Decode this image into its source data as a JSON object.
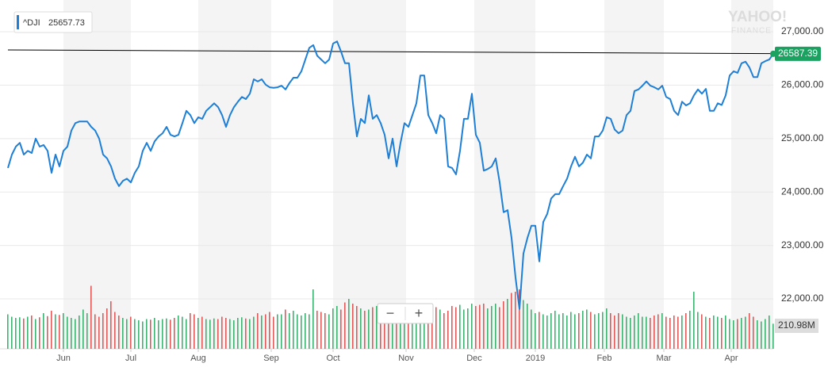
{
  "chart_data": {
    "type": "line",
    "brand": "YAHOO!",
    "brand_sub": "FINANCE",
    "legend_value": 25657.73,
    "controls": {
      "zoom_out": "−",
      "zoom_in": "+"
    },
    "series": [
      {
        "name": "^DJI",
        "color": "#1e7fd6",
        "values": [
          24450,
          24700,
          24850,
          24920,
          24700,
          24770,
          24730,
          25000,
          24850,
          24880,
          24770,
          24360,
          24700,
          24480,
          24770,
          24850,
          25150,
          25290,
          25320,
          25320,
          25320,
          25220,
          25150,
          25000,
          24700,
          24630,
          24480,
          24250,
          24110,
          24210,
          24250,
          24180,
          24360,
          24480,
          24770,
          24920,
          24770,
          24950,
          25040,
          25100,
          25220,
          25070,
          25040,
          25070,
          25290,
          25520,
          25440,
          25290,
          25400,
          25370,
          25520,
          25590,
          25660,
          25590,
          25440,
          25220,
          25440,
          25590,
          25690,
          25780,
          25740,
          25840,
          26110,
          26070,
          26110,
          26010,
          25960,
          25950,
          25960,
          25990,
          25920,
          26040,
          26140,
          26140,
          26260,
          26480,
          26700,
          26750,
          26550,
          26480,
          26410,
          26480,
          26780,
          26820,
          26630,
          26410,
          26410,
          25660,
          25040,
          25370,
          25290,
          25810,
          25370,
          25440,
          25290,
          25070,
          24630,
          25000,
          24480,
          24920,
          25290,
          25220,
          25440,
          25660,
          26180,
          26180,
          25440,
          25290,
          25100,
          25440,
          25370,
          24480,
          24450,
          24330,
          24770,
          25370,
          25370,
          25840,
          25070,
          24920,
          24400,
          24430,
          24480,
          24630,
          24180,
          23620,
          23660,
          23140,
          22400,
          21810,
          22850,
          23140,
          23370,
          23370,
          22700,
          23440,
          23590,
          23880,
          23960,
          23960,
          24110,
          24250,
          24480,
          24660,
          24480,
          24550,
          24700,
          24630,
          25040,
          25040,
          25150,
          25400,
          25370,
          25170,
          25100,
          25150,
          25440,
          25520,
          25890,
          25920,
          25990,
          26070,
          25990,
          25960,
          25920,
          25990,
          25780,
          25740,
          25520,
          25440,
          25690,
          25620,
          25660,
          25810,
          25920,
          25840,
          25930,
          25520,
          25520,
          25660,
          25630,
          25810,
          26180,
          26260,
          26230,
          26410,
          26440,
          26330,
          26150,
          26150,
          26410,
          26450,
          26480,
          26587.39
        ]
      }
    ],
    "volume": [
      290,
      270,
      260,
      265,
      255,
      270,
      280,
      250,
      265,
      300,
      275,
      320,
      290,
      285,
      300,
      270,
      260,
      250,
      280,
      330,
      300,
      530,
      290,
      270,
      300,
      340,
      400,
      310,
      280,
      260,
      250,
      270,
      250,
      240,
      230,
      250,
      245,
      260,
      240,
      250,
      255,
      245,
      260,
      280,
      270,
      250,
      300,
      290,
      260,
      270,
      250,
      245,
      255,
      250,
      270,
      260,
      250,
      240,
      260,
      265,
      255,
      250,
      270,
      300,
      280,
      290,
      310,
      270,
      290,
      290,
      330,
      300,
      320,
      290,
      280,
      300,
      290,
      500,
      320,
      310,
      300,
      290,
      340,
      360,
      330,
      390,
      420,
      380,
      360,
      340,
      320,
      330,
      350,
      360,
      380,
      370,
      350,
      340,
      330,
      320,
      360,
      340,
      320,
      310,
      350,
      330,
      340,
      360,
      350,
      330,
      300,
      320,
      360,
      350,
      370,
      330,
      340,
      380,
      360,
      370,
      380,
      340,
      360,
      380,
      350,
      400,
      420,
      470,
      480,
      500,
      410,
      380,
      330,
      300,
      310,
      290,
      280,
      300,
      320,
      290,
      300,
      280,
      310,
      290,
      300,
      320,
      330,
      310,
      290,
      300,
      310,
      340,
      300,
      280,
      300,
      290,
      270,
      260,
      280,
      300,
      270,
      270,
      260,
      280,
      290,
      300,
      270,
      260,
      280,
      270,
      280,
      300,
      320,
      480,
      310,
      290,
      270,
      260,
      280,
      270,
      260,
      280,
      250,
      240,
      250,
      260,
      270,
      300,
      270,
      240,
      230,
      250,
      280,
      210.98
    ],
    "volume_label": "210.98M",
    "volume_up_color": "#3cb371",
    "volume_down_color": "#e05a5a",
    "reference_line": [
      26660,
      26590
    ],
    "xlim": [
      0,
      193
    ],
    "xticks": [
      {
        "value": 14,
        "label": "Jun"
      },
      {
        "value": 31,
        "label": "Jul"
      },
      {
        "value": 48,
        "label": "Aug"
      },
      {
        "value": 66.4,
        "label": "Sep"
      },
      {
        "value": 82,
        "label": "Oct"
      },
      {
        "value": 100.4,
        "label": "Nov"
      },
      {
        "value": 117.6,
        "label": "Dec"
      },
      {
        "value": 133,
        "label": "2019"
      },
      {
        "value": 150.4,
        "label": "Feb"
      },
      {
        "value": 165.4,
        "label": "Mar"
      },
      {
        "value": 182.4,
        "label": "Apr"
      }
    ],
    "ylim": [
      21065,
      27520
    ],
    "yticks": [
      {
        "value": 22000,
        "label": "22,000.00"
      },
      {
        "value": 23000,
        "label": "23,000.00"
      },
      {
        "value": 24000,
        "label": "24,000.00"
      },
      {
        "value": 25000,
        "label": "25,000.00"
      },
      {
        "value": 26000,
        "label": "26,000.00"
      },
      {
        "value": 27000,
        "label": "27,000.00"
      }
    ],
    "grid": true
  }
}
